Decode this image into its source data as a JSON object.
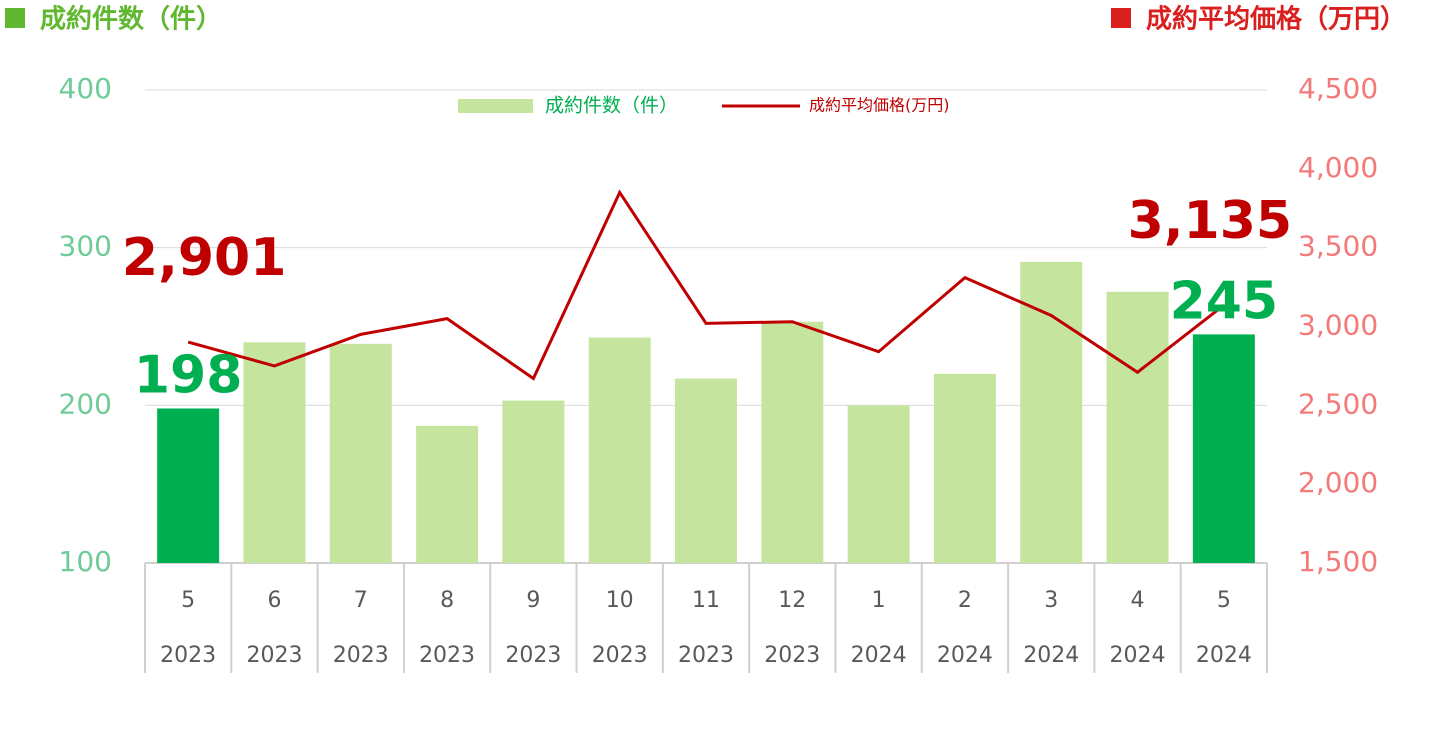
{
  "chart_data": {
    "type": "bar_line",
    "y_label": "成約件数（件）",
    "y2_label": "成約平均価格（万円）",
    "categories": [
      "5",
      "6",
      "7",
      "8",
      "9",
      "10",
      "11",
      "12",
      "1",
      "2",
      "3",
      "4",
      "5"
    ],
    "years": [
      "2023",
      "2023",
      "2023",
      "2023",
      "2023",
      "2023",
      "2023",
      "2023",
      "2024",
      "2024",
      "2024",
      "2024",
      "2024"
    ],
    "series": [
      {
        "name": "成約件数（件）",
        "type": "bar",
        "color": "#c5e59e",
        "colors": [
          "#00b050",
          "#c5e59e",
          "#c5e59e",
          "#c5e59e",
          "#c5e59e",
          "#c5e59e",
          "#c5e59e",
          "#c5e59e",
          "#c5e59e",
          "#c5e59e",
          "#c5e59e",
          "#c5e59e",
          "#00b050"
        ],
        "values": [
          198,
          240,
          239,
          187,
          203,
          243,
          217,
          253,
          200,
          220,
          291,
          272,
          245
        ],
        "value_labels": [
          "198",
          null,
          null,
          null,
          null,
          null,
          null,
          null,
          null,
          null,
          null,
          null,
          "245"
        ],
        "label_color": "#00b050"
      },
      {
        "name": "成約平均価格(万円)",
        "type": "line",
        "axis": "y2",
        "color": "#c00000",
        "values": [
          2901,
          2750,
          2950,
          3050,
          2670,
          3850,
          3020,
          3030,
          2840,
          3310,
          3070,
          2710,
          3135
        ],
        "value_labels": [
          "2,901",
          null,
          null,
          null,
          null,
          null,
          null,
          null,
          null,
          null,
          null,
          null,
          "3,135"
        ],
        "label_color": "#c00000"
      }
    ],
    "ylim": [
      100,
      400
    ],
    "yticks": [
      100,
      200,
      300,
      400
    ],
    "y2lim": [
      1500,
      4500
    ],
    "y2ticks": [
      {
        "value": 1500,
        "label": "1,500"
      },
      {
        "value": 2000,
        "label": "2,000"
      },
      {
        "value": 2500,
        "label": "2,500"
      },
      {
        "value": 3000,
        "label": "3,000"
      },
      {
        "value": 3500,
        "label": "3,500"
      },
      {
        "value": 4000,
        "label": "4,000"
      },
      {
        "value": 4500,
        "label": "4,500"
      }
    ],
    "y_tick_color": "#6fcc98",
    "y2_tick_color": "#f47a7a",
    "grid": true
  }
}
